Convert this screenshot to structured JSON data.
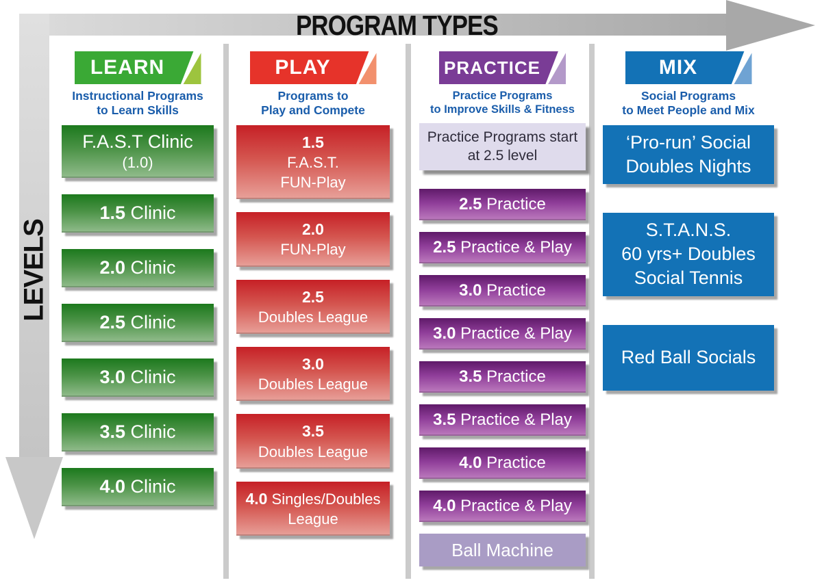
{
  "title": "PROGRAM TYPES",
  "side_label": "LEVELS",
  "colors": {
    "subtitle_blue": "#1a5dab",
    "title_black": "#111111",
    "arrow_head_gray": "#a8a8a8",
    "divider_gray": "#cbcbcb",
    "shadow_gray": "#a7a7a7",
    "note_bg": "#dfdbec",
    "note_text": "#2e2b3a",
    "lavender_bg": "#a99cc5"
  },
  "columns": [
    {
      "id": "learn",
      "banner": {
        "label": "LEARN",
        "color": "#3aa935",
        "accent": "#9dc43e"
      },
      "subtitle": [
        "Instructional Programs",
        "to Learn Skills"
      ],
      "box_gradient": [
        "#1c791d",
        "#4c9347",
        "#92bc8d"
      ],
      "items": [
        {
          "lines": [
            {
              "text": "F.A.S.T Clinic"
            },
            {
              "text": "(1.0)",
              "size": "sm"
            }
          ]
        },
        {
          "lines": [
            {
              "bold": "1.5",
              "text": " Clinic"
            }
          ]
        },
        {
          "lines": [
            {
              "bold": "2.0",
              "text": " Clinic"
            }
          ]
        },
        {
          "lines": [
            {
              "bold": "2.5",
              "text": " Clinic"
            }
          ]
        },
        {
          "lines": [
            {
              "bold": "3.0",
              "text": " Clinic"
            }
          ]
        },
        {
          "lines": [
            {
              "bold": "3.5",
              "text": " Clinic"
            }
          ]
        },
        {
          "lines": [
            {
              "bold": "4.0",
              "text": " Clinic"
            }
          ]
        }
      ]
    },
    {
      "id": "play",
      "banner": {
        "label": "PLAY",
        "color": "#e6332a",
        "accent": "#f2906d"
      },
      "subtitle": [
        "Programs to",
        "Play and Compete"
      ],
      "box_gradient": [
        "#c62026",
        "#d4554f",
        "#e8a19a"
      ],
      "items": [
        {
          "lines": [
            {
              "bold": "1.5"
            },
            {
              "text": "F.A.S.T."
            },
            {
              "text": "FUN-Play"
            }
          ]
        },
        {
          "lines": [
            {
              "bold": "2.0"
            },
            {
              "text": "FUN-Play"
            }
          ]
        },
        {
          "lines": [
            {
              "bold": "2.5"
            },
            {
              "text": "Doubles League"
            }
          ]
        },
        {
          "lines": [
            {
              "bold": "3.0"
            },
            {
              "text": "Doubles League"
            }
          ]
        },
        {
          "lines": [
            {
              "bold": "3.5"
            },
            {
              "text": "Doubles League"
            }
          ]
        },
        {
          "lines": [
            {
              "bold": "4.0",
              "text": " Singles/Doubles"
            },
            {
              "text": "League"
            }
          ]
        }
      ]
    },
    {
      "id": "practice",
      "banner": {
        "label": "PRACTICE",
        "color": "#7a3c96",
        "accent": "#b399c9"
      },
      "subtitle": [
        "Practice Programs",
        "to Improve Skills & Fitness"
      ],
      "box_gradient": [
        "#5f1a69",
        "#8f3d99",
        "#bd7cbe"
      ],
      "items": [
        {
          "style": "note",
          "lines": [
            {
              "text": "Practice Programs start"
            },
            {
              "text": "at 2.5 level"
            }
          ]
        },
        {
          "lines": [
            {
              "bold": "2.5",
              "text": " Practice"
            }
          ]
        },
        {
          "lines": [
            {
              "bold": "2.5",
              "text": " Practice & Play"
            }
          ]
        },
        {
          "lines": [
            {
              "bold": "3.0",
              "text": " Practice"
            }
          ]
        },
        {
          "lines": [
            {
              "bold": "3.0",
              "text": " Practice & Play"
            }
          ]
        },
        {
          "lines": [
            {
              "bold": "3.5",
              "text": " Practice"
            }
          ]
        },
        {
          "lines": [
            {
              "bold": "3.5",
              "text": " Practice & Play"
            }
          ]
        },
        {
          "lines": [
            {
              "bold": "4.0",
              "text": " Practice"
            }
          ]
        },
        {
          "lines": [
            {
              "bold": "4.0",
              "text": " Practice & Play"
            }
          ]
        },
        {
          "style": "lavender",
          "lines": [
            {
              "text": "Ball Machine"
            }
          ]
        }
      ]
    },
    {
      "id": "mix",
      "banner": {
        "label": "MIX",
        "color": "#1372b6",
        "accent": "#6fa3d3"
      },
      "subtitle": [
        "Social Programs",
        "to Meet People and Mix"
      ],
      "box_color": "#1372b6",
      "items": [
        {
          "lines": [
            {
              "text": "‘Pro-run’ Social"
            },
            {
              "text": "Doubles Nights"
            }
          ]
        },
        {
          "lines": [
            {
              "text": "S.T.A.N.S."
            },
            {
              "text": "60 yrs+ Doubles"
            },
            {
              "text": "Social Tennis"
            }
          ]
        },
        {
          "lines": [
            {
              "text": "Red Ball Socials"
            }
          ]
        }
      ]
    }
  ]
}
